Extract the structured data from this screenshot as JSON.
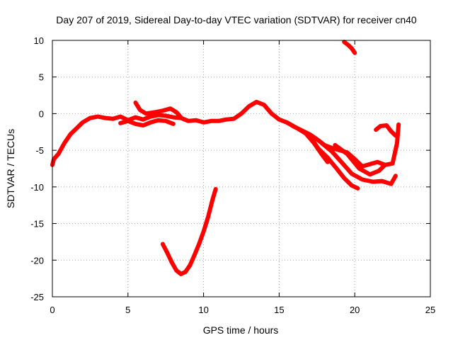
{
  "chart_data": {
    "type": "line",
    "title": "Day 207 of 2019, Sidereal Day-to-day VTEC variation (SDTVAR) for receiver cn40",
    "xlabel": "GPS time / hours",
    "ylabel": "SDTVAR / TECUs",
    "xlim": [
      0,
      25
    ],
    "ylim": [
      -25,
      10
    ],
    "xticks": [
      0,
      5,
      10,
      15,
      20,
      25
    ],
    "yticks": [
      10,
      5,
      0,
      -5,
      -10,
      -15,
      -20,
      -25
    ],
    "grid": true,
    "series_color": "#ff0000",
    "series": [
      {
        "name": "track-main",
        "points": [
          [
            0,
            -7
          ],
          [
            0.1,
            -6.2
          ],
          [
            0.4,
            -5.5
          ],
          [
            0.8,
            -4
          ],
          [
            1.2,
            -2.8
          ],
          [
            1.6,
            -2
          ],
          [
            2,
            -1.2
          ],
          [
            2.5,
            -0.6
          ],
          [
            3,
            -0.4
          ],
          [
            3.5,
            -0.6
          ],
          [
            4,
            -0.7
          ],
          [
            4.5,
            -0.4
          ],
          [
            5,
            -0.9
          ],
          [
            5.5,
            -0.5
          ],
          [
            6,
            -0.8
          ],
          [
            6.5,
            -0.4
          ],
          [
            7,
            -0.2
          ],
          [
            7.5,
            -0.3
          ],
          [
            8,
            -0.5
          ],
          [
            8.5,
            -0.6
          ],
          [
            9,
            -1
          ],
          [
            9.5,
            -0.9
          ],
          [
            10,
            -1.2
          ],
          [
            10.5,
            -1
          ],
          [
            11,
            -1
          ],
          [
            11.5,
            -0.8
          ],
          [
            12,
            -0.7
          ],
          [
            12.5,
            0
          ],
          [
            13,
            1
          ],
          [
            13.5,
            1.6
          ],
          [
            14,
            1.2
          ],
          [
            14.5,
            0
          ],
          [
            15,
            -0.8
          ],
          [
            15.5,
            -1.2
          ],
          [
            16,
            -1.8
          ],
          [
            16.5,
            -2.3
          ],
          [
            17,
            -2.8
          ],
          [
            17.5,
            -3.5
          ],
          [
            18,
            -4.3
          ],
          [
            18.5,
            -4.7
          ],
          [
            19,
            -5
          ],
          [
            19.5,
            -5.3
          ],
          [
            20,
            -6.2
          ],
          [
            20.5,
            -7.2
          ],
          [
            21,
            -6.9
          ],
          [
            21.5,
            -6.6
          ],
          [
            22,
            -7
          ],
          [
            22.5,
            -6.8
          ],
          [
            22.8,
            -4
          ],
          [
            22.9,
            -1.5
          ]
        ]
      },
      {
        "name": "track-upper-branch",
        "points": [
          [
            5.5,
            1.5
          ],
          [
            5.8,
            0.5
          ],
          [
            6.2,
            0
          ],
          [
            6.8,
            0.2
          ],
          [
            7.3,
            0.4
          ],
          [
            7.8,
            0.7
          ],
          [
            8.2,
            0.2
          ],
          [
            8.5,
            -0.5
          ]
        ]
      },
      {
        "name": "track-lower-branch",
        "points": [
          [
            4.5,
            -1.3
          ],
          [
            5,
            -1
          ],
          [
            5.5,
            -1.4
          ],
          [
            6,
            -1.6
          ],
          [
            6.5,
            -1.2
          ],
          [
            7,
            -0.9
          ],
          [
            7.5,
            -1
          ],
          [
            8,
            -1.4
          ]
        ]
      },
      {
        "name": "track-descent-a",
        "points": [
          [
            15.5,
            -1.2
          ],
          [
            16.2,
            -2
          ],
          [
            17,
            -3
          ],
          [
            17.6,
            -4.8
          ],
          [
            18.2,
            -6
          ],
          [
            18.8,
            -7.5
          ],
          [
            19.3,
            -8.8
          ],
          [
            19.8,
            -9.8
          ],
          [
            20.2,
            -10.2
          ]
        ]
      },
      {
        "name": "track-descent-b",
        "points": [
          [
            16.8,
            -2.8
          ],
          [
            17.3,
            -4
          ],
          [
            17.8,
            -5.5
          ],
          [
            18.2,
            -6.6
          ]
        ]
      },
      {
        "name": "track-descent-c",
        "points": [
          [
            17.8,
            -4
          ],
          [
            18.5,
            -5.2
          ],
          [
            19.2,
            -6.8
          ],
          [
            19.8,
            -8.2
          ],
          [
            20.5,
            -9
          ],
          [
            21.2,
            -9.3
          ],
          [
            21.8,
            -9.2
          ],
          [
            22.4,
            -9.6
          ],
          [
            22.7,
            -8.5
          ]
        ]
      },
      {
        "name": "track-descent-d",
        "points": [
          [
            18.7,
            -4.3
          ],
          [
            19.5,
            -5.5
          ],
          [
            20.3,
            -7.5
          ],
          [
            21,
            -8.3
          ],
          [
            21.6,
            -7.8
          ],
          [
            22,
            -7
          ]
        ]
      },
      {
        "name": "track-hook",
        "points": [
          [
            21.4,
            -2.2
          ],
          [
            21.7,
            -1.7
          ],
          [
            22.1,
            -1.6
          ],
          [
            22.4,
            -2.4
          ],
          [
            22.7,
            -3
          ]
        ]
      },
      {
        "name": "track-top-right",
        "points": [
          [
            19.3,
            9.8
          ],
          [
            19.6,
            9.3
          ],
          [
            19.8,
            8.9
          ],
          [
            20,
            8.3
          ]
        ]
      },
      {
        "name": "track-v-curve",
        "points": [
          [
            7.3,
            -17.8
          ],
          [
            7.6,
            -19
          ],
          [
            7.9,
            -20.3
          ],
          [
            8.2,
            -21.4
          ],
          [
            8.5,
            -21.9
          ],
          [
            8.8,
            -21.6
          ],
          [
            9.1,
            -20.7
          ],
          [
            9.4,
            -19.3
          ],
          [
            9.7,
            -17.8
          ],
          [
            10,
            -16.1
          ],
          [
            10.3,
            -14.1
          ],
          [
            10.6,
            -11.7
          ],
          [
            10.8,
            -10.3
          ]
        ]
      }
    ]
  }
}
